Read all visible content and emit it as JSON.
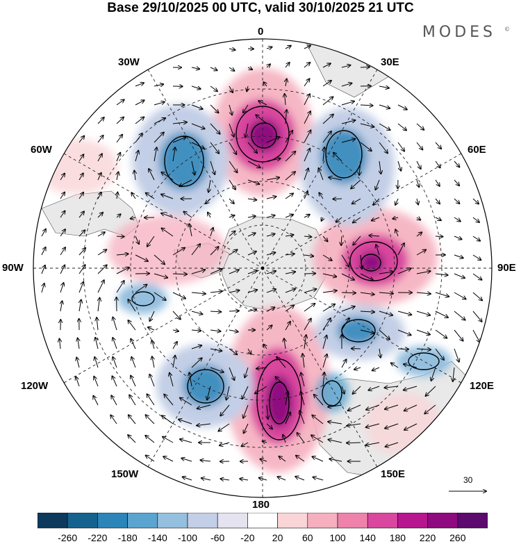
{
  "title": "Base 29/10/2025 00 UTC, valid 30/10/2025 21 UTC",
  "brand": "MODES",
  "brand_mark": "©",
  "longitude_labels": {
    "top": "0",
    "left": "90W",
    "right": "90E",
    "bottom": "180",
    "w30": "30W",
    "e30": "30E",
    "w60": "60W",
    "e60": "60E",
    "w120": "120W",
    "e120": "120E",
    "w150": "150W",
    "e150": "150E"
  },
  "vector_scale_label": "30",
  "colorbar": {
    "colors": [
      "#0d3a5c",
      "#15628f",
      "#2b85b8",
      "#5aa4cf",
      "#94bfdf",
      "#c3cfe6",
      "#e5e3ef",
      "#ffffff",
      "#f9d5d7",
      "#f5afbf",
      "#ee82ab",
      "#d9479e",
      "#b8168f",
      "#8f0a7f",
      "#5c0a6e"
    ],
    "ticks": [
      "-260",
      "-220",
      "-180",
      "-140",
      "-100",
      "-60",
      "-20",
      "20",
      "60",
      "100",
      "140",
      "180",
      "220",
      "260"
    ]
  },
  "anomaly_centers": [
    {
      "name": "positive-center-0E",
      "sign": "positive",
      "value": 260
    },
    {
      "name": "positive-center-90E",
      "sign": "positive",
      "value": 240
    },
    {
      "name": "positive-center-180",
      "sign": "positive",
      "value": 260
    },
    {
      "name": "positive-center-80W",
      "sign": "positive",
      "value": 100
    },
    {
      "name": "negative-center-40W",
      "sign": "negative",
      "value": -180
    },
    {
      "name": "negative-center-40E",
      "sign": "negative",
      "value": -180
    },
    {
      "name": "negative-center-120E",
      "sign": "negative",
      "value": -180
    },
    {
      "name": "negative-center-150W",
      "sign": "negative",
      "value": -180
    },
    {
      "name": "negative-center-160E",
      "sign": "negative",
      "value": -140
    },
    {
      "name": "negative-center-110W",
      "sign": "negative",
      "value": -140
    }
  ]
}
